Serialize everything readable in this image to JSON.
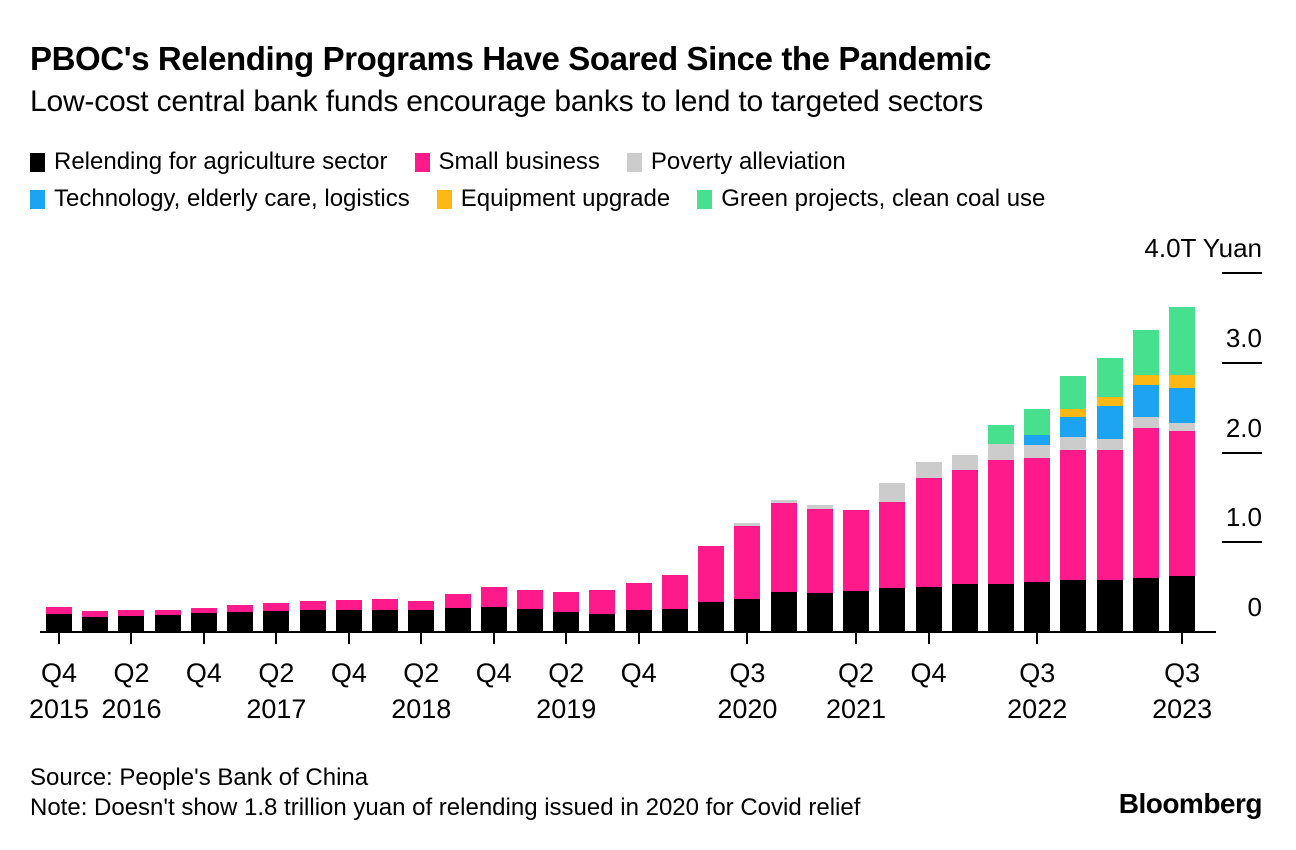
{
  "header": {
    "title": "PBOC's Relending Programs Have Soared Since the Pandemic",
    "subtitle": "Low-cost central bank funds encourage banks to lend to targeted sectors"
  },
  "footer": {
    "source": "Source: People's Bank of China",
    "note": "Note: Doesn't show 1.8 trillion yuan of relending issued in 2020 for Covid relief",
    "brand": "Bloomberg"
  },
  "chart_data": {
    "type": "bar",
    "stacked": true,
    "unit": "trillion yuan",
    "title": "PBOC's Relending Programs Have Soared Since the Pandemic",
    "subtitle": "Low-cost central bank funds encourage banks to lend to targeted sectors",
    "grid": false,
    "legend_position": "top",
    "y_axis_side": "right",
    "ylim": [
      0,
      4.0
    ],
    "y_ticks": [
      {
        "value": 4.0,
        "label": "4.0T Yuan",
        "line": true
      },
      {
        "value": 3.0,
        "label": "3.0",
        "line": true
      },
      {
        "value": 2.0,
        "label": "2.0",
        "line": true
      },
      {
        "value": 1.0,
        "label": "1.0",
        "line": true
      },
      {
        "value": 0.0,
        "label": "0",
        "line": false
      }
    ],
    "categories": [
      "Q4 2015",
      "Q1 2016",
      "Q2 2016",
      "Q3 2016",
      "Q4 2016",
      "Q1 2017",
      "Q2 2017",
      "Q3 2017",
      "Q4 2017",
      "Q1 2018",
      "Q2 2018",
      "Q3 2018",
      "Q4 2018",
      "Q1 2019",
      "Q2 2019",
      "Q3 2019",
      "Q4 2019",
      "Q1 2020",
      "Q2 2020",
      "Q3 2020",
      "Q4 2020",
      "Q1 2021",
      "Q2 2021",
      "Q3 2021",
      "Q4 2021",
      "Q1 2022",
      "Q2 2022",
      "Q3 2022",
      "Q4 2022",
      "Q1 2023",
      "Q2 2023",
      "Q3 2023"
    ],
    "series": [
      {
        "name": "Relending for agriculture sector",
        "key": "agriculture",
        "color": "#000000",
        "values": [
          0.2,
          0.17,
          0.18,
          0.19,
          0.21,
          0.22,
          0.23,
          0.24,
          0.25,
          0.25,
          0.25,
          0.27,
          0.28,
          0.26,
          0.22,
          0.2,
          0.25,
          0.26,
          0.33,
          0.37,
          0.45,
          0.43,
          0.46,
          0.49,
          0.5,
          0.54,
          0.54,
          0.56,
          0.58,
          0.58,
          0.6,
          0.62
        ]
      },
      {
        "name": "Small business",
        "key": "small-business",
        "color": "#ff1a8c",
        "values": [
          0.08,
          0.06,
          0.07,
          0.05,
          0.06,
          0.08,
          0.09,
          0.1,
          0.11,
          0.12,
          0.1,
          0.15,
          0.22,
          0.21,
          0.23,
          0.27,
          0.3,
          0.38,
          0.63,
          0.81,
          0.99,
          0.94,
          0.9,
          0.96,
          1.22,
          1.27,
          1.38,
          1.38,
          1.45,
          1.45,
          1.67,
          1.62
        ]
      },
      {
        "name": "Poverty alleviation",
        "key": "poverty-alleviation",
        "color": "#cccccc",
        "values": [
          0,
          0,
          0,
          0,
          0,
          0,
          0,
          0,
          0,
          0,
          0,
          0,
          0,
          0,
          0,
          0,
          0,
          0,
          0,
          0.03,
          0.03,
          0.04,
          0,
          0.21,
          0.17,
          0.16,
          0.17,
          0.14,
          0.14,
          0.12,
          0.13,
          0.09
        ]
      },
      {
        "name": "Technology, elderly care, logistics",
        "key": "technology-elderly-logistics",
        "color": "#1ca3f2",
        "values": [
          0,
          0,
          0,
          0,
          0,
          0,
          0,
          0,
          0,
          0,
          0,
          0,
          0,
          0,
          0,
          0,
          0,
          0,
          0,
          0,
          0,
          0,
          0,
          0,
          0,
          0,
          0,
          0.11,
          0.23,
          0.37,
          0.35,
          0.39
        ]
      },
      {
        "name": "Equipment upgrade",
        "key": "equipment-upgrade",
        "color": "#fdb813",
        "values": [
          0,
          0,
          0,
          0,
          0,
          0,
          0,
          0,
          0,
          0,
          0,
          0,
          0,
          0,
          0,
          0,
          0,
          0,
          0,
          0,
          0,
          0,
          0,
          0,
          0,
          0,
          0,
          0,
          0.09,
          0.1,
          0.11,
          0.14
        ]
      },
      {
        "name": "Green projects, clean coal use",
        "key": "green-projects",
        "color": "#46e08e",
        "values": [
          0,
          0,
          0,
          0,
          0,
          0,
          0,
          0,
          0,
          0,
          0,
          0,
          0,
          0,
          0,
          0,
          0,
          0,
          0,
          0,
          0,
          0,
          0,
          0,
          0,
          0,
          0.22,
          0.29,
          0.36,
          0.43,
          0.5,
          0.76
        ]
      }
    ],
    "legend_rows": [
      [
        0,
        1,
        2
      ],
      [
        3,
        4,
        5
      ]
    ],
    "x_ticks": [
      {
        "bar": 1,
        "quarter": "Q4",
        "year": "2015"
      },
      {
        "bar": 3,
        "quarter": "Q2",
        "year": "2016"
      },
      {
        "bar": 5,
        "quarter": "Q4",
        "year": ""
      },
      {
        "bar": 7,
        "quarter": "Q2",
        "year": "2017"
      },
      {
        "bar": 9,
        "quarter": "Q4",
        "year": ""
      },
      {
        "bar": 11,
        "quarter": "Q2",
        "year": "2018"
      },
      {
        "bar": 13,
        "quarter": "Q4",
        "year": ""
      },
      {
        "bar": 15,
        "quarter": "Q2",
        "year": "2019"
      },
      {
        "bar": 17,
        "quarter": "Q4",
        "year": ""
      },
      {
        "bar": 20,
        "quarter": "Q3",
        "year": "2020"
      },
      {
        "bar": 23,
        "quarter": "Q2",
        "year": "2021"
      },
      {
        "bar": 25,
        "quarter": "Q4",
        "year": ""
      },
      {
        "bar": 28,
        "quarter": "Q3",
        "year": "2022"
      },
      {
        "bar": 32,
        "quarter": "Q3",
        "year": "2023"
      }
    ]
  }
}
